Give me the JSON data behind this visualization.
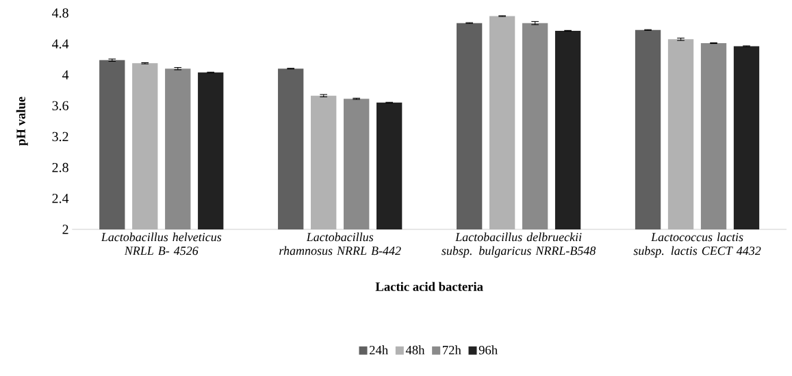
{
  "chart_data": {
    "type": "bar",
    "xlabel": "Lactic acid bacteria",
    "ylabel": "pH value",
    "categories": [
      "Lactobacillus helveticus NRLL B- 4526",
      "Lactobacillus rhamnosus NRRL B-442",
      "Lactobacillus delbrueckii subsp. bulgaricus NRRL-B548",
      "Lactococcus lactis subsp. lactis CECT 4432"
    ],
    "series": [
      {
        "name": "24h",
        "color": "#606060",
        "values": [
          4.19,
          4.08,
          4.67,
          4.58
        ],
        "errors": [
          0.015,
          0.005,
          0.005,
          0.005
        ]
      },
      {
        "name": "48h",
        "color": "#b2b2b2",
        "values": [
          4.15,
          3.73,
          4.76,
          4.46
        ],
        "errors": [
          0.008,
          0.015,
          0.005,
          0.015
        ]
      },
      {
        "name": "72h",
        "color": "#8a8a8a",
        "values": [
          4.08,
          3.69,
          4.67,
          4.41
        ],
        "errors": [
          0.015,
          0.008,
          0.02,
          0.005
        ]
      },
      {
        "name": "96h",
        "color": "#222222",
        "values": [
          4.03,
          3.64,
          4.57,
          4.37
        ],
        "errors": [
          0.005,
          0.005,
          0.005,
          0.005
        ]
      }
    ],
    "ylim": [
      2,
      4.8
    ],
    "yticks": [
      2,
      2.4,
      2.8,
      3.2,
      3.6,
      4,
      4.4,
      4.8
    ],
    "grid": false,
    "legend": "bottom"
  }
}
